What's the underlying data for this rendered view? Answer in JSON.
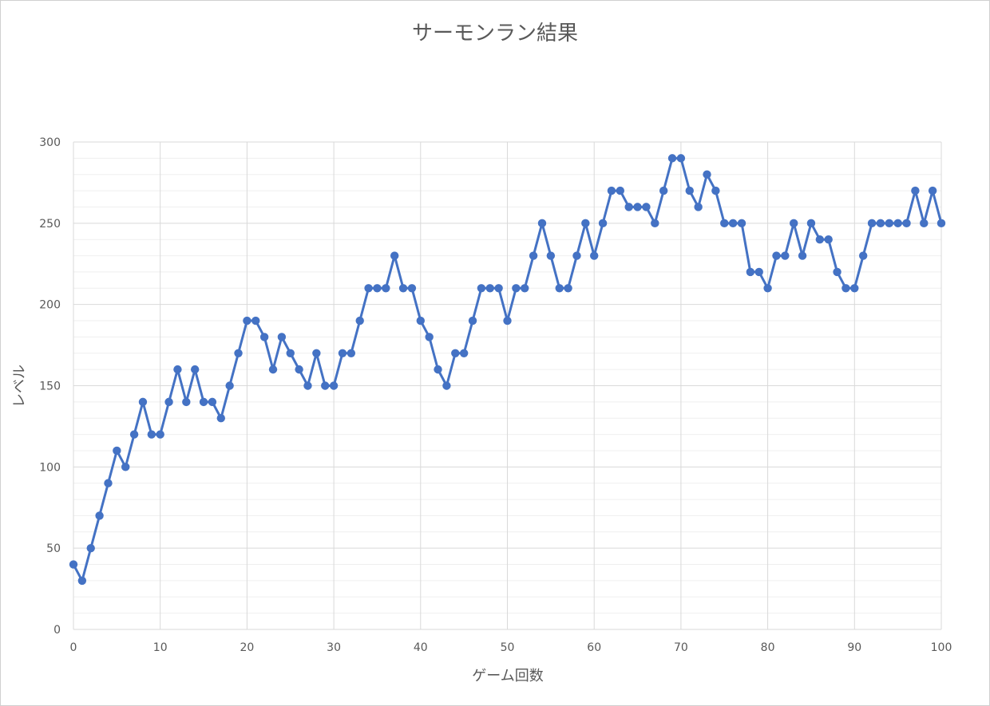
{
  "chart_data": {
    "type": "line",
    "title": "サーモンラン結果",
    "xlabel": "ゲーム回数",
    "ylabel": "レベル",
    "xlim": [
      0,
      100
    ],
    "ylim": [
      0,
      300
    ],
    "x_ticks": [
      "0",
      "10",
      "20",
      "30",
      "40",
      "50",
      "60",
      "70",
      "80",
      "90",
      "100"
    ],
    "y_ticks": [
      "0",
      "50",
      "100",
      "150",
      "200",
      "250",
      "300"
    ],
    "x_major_step": 10,
    "y_major_step": 50,
    "y_minor_step": 10,
    "grid": true,
    "legend": "none",
    "color": "#4472c4",
    "series": [
      {
        "x": [
          0,
          1,
          2,
          3,
          4,
          5,
          6,
          7,
          8,
          9,
          10,
          11,
          12,
          13,
          14,
          15,
          16,
          17,
          18,
          19,
          20,
          21,
          22,
          23,
          24,
          25,
          26,
          27,
          28,
          29,
          30,
          31,
          32,
          33,
          34,
          35,
          36,
          37,
          38,
          39,
          40,
          41,
          42,
          43,
          44,
          45,
          46,
          47,
          48,
          49,
          50,
          51,
          52,
          53,
          54,
          55,
          56,
          57,
          58,
          59,
          60,
          61,
          62,
          63,
          64,
          65,
          66,
          67,
          68,
          69,
          70,
          71,
          72,
          73,
          74,
          75,
          76,
          77,
          78,
          79,
          80,
          81,
          82,
          83,
          84,
          85,
          86,
          87,
          88,
          89,
          90,
          91,
          92,
          93,
          94,
          95,
          96,
          97,
          98,
          99,
          100
        ],
        "values": [
          40,
          30,
          50,
          70,
          90,
          110,
          100,
          120,
          140,
          120,
          120,
          140,
          160,
          140,
          160,
          140,
          140,
          130,
          150,
          170,
          190,
          190,
          180,
          160,
          180,
          170,
          160,
          150,
          170,
          150,
          150,
          170,
          170,
          190,
          210,
          210,
          210,
          230,
          210,
          210,
          190,
          180,
          160,
          150,
          170,
          170,
          190,
          210,
          210,
          210,
          190,
          210,
          210,
          230,
          250,
          230,
          210,
          210,
          230,
          250,
          230,
          250,
          270,
          270,
          260,
          260,
          260,
          250,
          270,
          290,
          290,
          270,
          260,
          280,
          270,
          250,
          250,
          250,
          220,
          220,
          210,
          230,
          230,
          250,
          230,
          250,
          240,
          240,
          220,
          210,
          210,
          230,
          250,
          250,
          250,
          250,
          250,
          270,
          250,
          270,
          250
        ]
      }
    ]
  }
}
